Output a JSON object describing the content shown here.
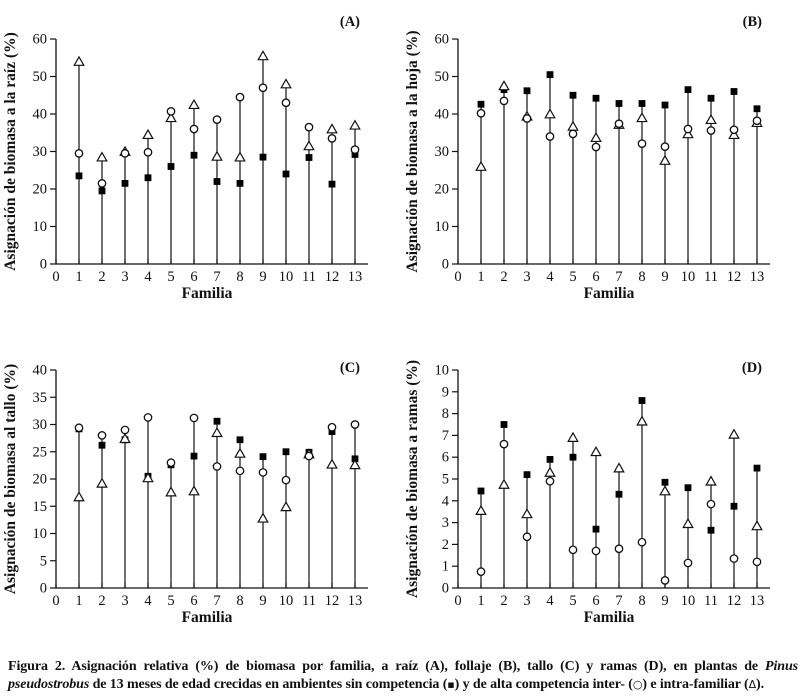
{
  "figure": {
    "caption_segments": [
      {
        "style": "normal",
        "text": "Figura 2. Asignación relativa (%) de biomasa por familia, a raíz (A), follaje (B), tallo (C) y ramas (D), en plantas de "
      },
      {
        "style": "italic",
        "text": "Pinus pseudostrobus"
      },
      {
        "style": "normal",
        "text": " de 13 meses de edad crecidas en ambientes sin competencia ("
      },
      {
        "style": "symbol",
        "text": "▪"
      },
      {
        "style": "normal",
        "text": ") y de alta competencia inter- ("
      },
      {
        "style": "symbol",
        "text": "○"
      },
      {
        "style": "normal",
        "text": ") e intra-familiar ("
      },
      {
        "style": "symbol",
        "text": "Δ"
      },
      {
        "style": "normal",
        "text": ")."
      }
    ]
  },
  "legend": {
    "filled-square": "sin competencia",
    "open-circle": "alta competencia inter-familiar",
    "open-triangle": "alta competencia intra-familiar"
  },
  "colors": {
    "ink": "#111111",
    "marker_fill": "#000000",
    "open_fill": "#ffffff"
  },
  "chart_data": [
    {
      "type": "scatter",
      "panel_label": "(A)",
      "ylabel": "Asignación de biomasa a la raíz (%)",
      "xlabel": "Familia",
      "ylim": [
        0,
        60
      ],
      "ytick_step": 10,
      "xlim": [
        0,
        13
      ],
      "xtick_step": 1,
      "categories": [
        1,
        2,
        3,
        4,
        5,
        6,
        7,
        8,
        9,
        10,
        11,
        12,
        13
      ],
      "series": [
        {
          "name": "sin competencia",
          "marker": "filled-square",
          "values": [
            23.5,
            19.5,
            21.5,
            23.0,
            26.0,
            29.0,
            22.0,
            21.5,
            28.5,
            24.0,
            28.4,
            21.3,
            29.2
          ]
        },
        {
          "name": "alta competencia inter-familiar",
          "marker": "open-circle",
          "values": [
            29.5,
            21.5,
            29.5,
            29.8,
            40.7,
            36.0,
            38.5,
            44.5,
            47.0,
            43.0,
            36.5,
            33.5,
            30.5
          ]
        },
        {
          "name": "alta competencia intra-familiar",
          "marker": "open-triangle",
          "values": [
            54.0,
            28.5,
            30.0,
            34.5,
            39.0,
            42.5,
            28.7,
            28.5,
            55.5,
            48.0,
            31.5,
            36.0,
            37.0
          ]
        }
      ]
    },
    {
      "type": "scatter",
      "panel_label": "(B)",
      "ylabel": "Asignación de biomasa a la hoja (%)",
      "xlabel": "Familia",
      "ylim": [
        0,
        60
      ],
      "ytick_step": 10,
      "xlim": [
        0,
        13
      ],
      "xtick_step": 1,
      "categories": [
        1,
        2,
        3,
        4,
        5,
        6,
        7,
        8,
        9,
        10,
        11,
        12,
        13
      ],
      "series": [
        {
          "name": "sin competencia",
          "marker": "filled-square",
          "values": [
            42.6,
            46.5,
            46.2,
            50.5,
            45.0,
            44.2,
            42.8,
            42.8,
            42.4,
            46.5,
            44.2,
            46.0,
            41.4
          ]
        },
        {
          "name": "alta competencia inter-familiar",
          "marker": "open-circle",
          "values": [
            40.2,
            43.5,
            38.8,
            34.0,
            34.7,
            31.2,
            37.4,
            32.1,
            31.3,
            36.0,
            35.6,
            35.8,
            38.2
          ]
        },
        {
          "name": "alta competencia intra-familiar",
          "marker": "open-triangle",
          "values": [
            26.0,
            47.5,
            39.4,
            40.0,
            36.7,
            33.7,
            37.2,
            39.0,
            27.6,
            34.7,
            38.5,
            34.5,
            37.7
          ]
        }
      ]
    },
    {
      "type": "scatter",
      "panel_label": "(C)",
      "ylabel": "Asignación de biomasa al tallo (%)",
      "xlabel": "Familia",
      "ylim": [
        0,
        40
      ],
      "ytick_step": 5,
      "xlim": [
        0,
        13
      ],
      "xtick_step": 1,
      "categories": [
        1,
        2,
        3,
        4,
        5,
        6,
        7,
        8,
        9,
        10,
        11,
        12,
        13
      ],
      "series": [
        {
          "name": "sin competencia",
          "marker": "filled-square",
          "values": [
            29.2,
            26.2,
            27.2,
            20.5,
            22.6,
            24.2,
            30.6,
            27.2,
            24.1,
            25.0,
            24.9,
            28.7,
            23.7
          ]
        },
        {
          "name": "alta competencia inter-familiar",
          "marker": "open-circle",
          "values": [
            29.4,
            28.0,
            29.0,
            31.3,
            23.0,
            31.2,
            22.3,
            21.5,
            21.2,
            19.8,
            24.2,
            29.5,
            30.0
          ]
        },
        {
          "name": "alta competencia intra-familiar",
          "marker": "open-triangle",
          "values": [
            16.7,
            19.2,
            27.4,
            20.2,
            17.6,
            17.8,
            28.5,
            24.7,
            12.8,
            14.9,
            24.6,
            22.7,
            22.6
          ]
        }
      ]
    },
    {
      "type": "scatter",
      "panel_label": "(D)",
      "ylabel": "Asignación de biomasa a ramas (%)",
      "xlabel": "Familia",
      "ylim": [
        0,
        10
      ],
      "ytick_step": 1,
      "xlim": [
        0,
        13
      ],
      "xtick_step": 1,
      "categories": [
        1,
        2,
        3,
        4,
        5,
        6,
        7,
        8,
        9,
        10,
        11,
        12,
        13
      ],
      "series": [
        {
          "name": "sin competencia",
          "marker": "filled-square",
          "values": [
            4.45,
            7.5,
            5.2,
            5.9,
            6.0,
            2.7,
            4.3,
            8.6,
            4.85,
            4.6,
            2.65,
            3.75,
            5.5
          ]
        },
        {
          "name": "alta competencia inter-familiar",
          "marker": "open-circle",
          "values": [
            0.75,
            6.6,
            2.35,
            4.9,
            1.75,
            1.7,
            1.8,
            2.1,
            0.35,
            1.15,
            3.85,
            1.35,
            1.2
          ]
        },
        {
          "name": "alta competencia intra-familiar",
          "marker": "open-triangle",
          "values": [
            3.55,
            4.75,
            3.4,
            5.3,
            6.9,
            6.25,
            5.5,
            7.65,
            4.45,
            2.95,
            4.9,
            7.05,
            2.85
          ]
        }
      ]
    }
  ]
}
